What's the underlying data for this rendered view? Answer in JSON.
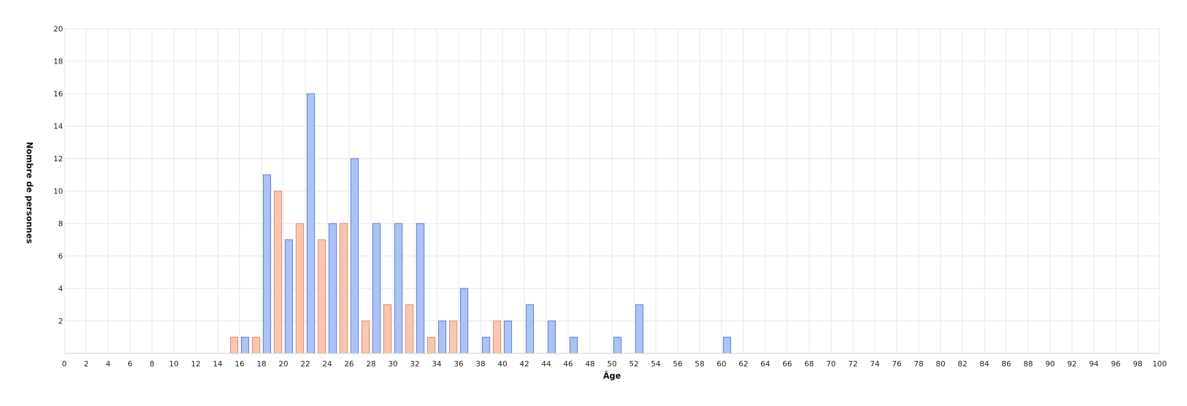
{
  "chart_data": {
    "type": "bar",
    "xlabel": "Âge",
    "ylabel": "Nombre de personnes",
    "xlim": [
      0,
      100
    ],
    "ylim": [
      0,
      20
    ],
    "x_ticks": [
      0,
      2,
      4,
      6,
      8,
      10,
      12,
      14,
      16,
      18,
      20,
      22,
      24,
      26,
      28,
      30,
      32,
      34,
      36,
      38,
      40,
      42,
      44,
      46,
      48,
      50,
      52,
      54,
      56,
      58,
      60,
      62,
      64,
      66,
      68,
      70,
      72,
      74,
      76,
      78,
      80,
      82,
      84,
      86,
      88,
      90,
      92,
      94,
      96,
      98,
      100
    ],
    "y_ticks": [
      2,
      4,
      6,
      8,
      10,
      12,
      14,
      16,
      18,
      20
    ],
    "grid": true,
    "colors": {
      "blue_fill": "#adc3f5",
      "blue_stroke": "#5b78d0",
      "orange_fill": "#fbc6ae",
      "orange_stroke": "#d98a6e",
      "grid": "#e6e6e6"
    },
    "series": [
      {
        "color": "blue",
        "points": [
          {
            "x": 16.5,
            "y": 1
          },
          {
            "x": 18.5,
            "y": 11
          },
          {
            "x": 20.5,
            "y": 7
          },
          {
            "x": 22.5,
            "y": 16
          },
          {
            "x": 24.5,
            "y": 8
          },
          {
            "x": 26.5,
            "y": 12
          },
          {
            "x": 28.5,
            "y": 8
          },
          {
            "x": 30.5,
            "y": 8
          },
          {
            "x": 32.5,
            "y": 8
          },
          {
            "x": 34.5,
            "y": 2
          },
          {
            "x": 36.5,
            "y": 4
          },
          {
            "x": 38.5,
            "y": 1
          },
          {
            "x": 40.5,
            "y": 2
          },
          {
            "x": 42.5,
            "y": 3
          },
          {
            "x": 44.5,
            "y": 2
          },
          {
            "x": 46.5,
            "y": 1
          },
          {
            "x": 50.5,
            "y": 1
          },
          {
            "x": 52.5,
            "y": 3
          },
          {
            "x": 60.5,
            "y": 1
          }
        ]
      },
      {
        "color": "orange",
        "points": [
          {
            "x": 15.5,
            "y": 1
          },
          {
            "x": 17.5,
            "y": 1
          },
          {
            "x": 19.5,
            "y": 10
          },
          {
            "x": 21.5,
            "y": 8
          },
          {
            "x": 23.5,
            "y": 7
          },
          {
            "x": 25.5,
            "y": 8
          },
          {
            "x": 27.5,
            "y": 2
          },
          {
            "x": 29.5,
            "y": 3
          },
          {
            "x": 31.5,
            "y": 3
          },
          {
            "x": 33.5,
            "y": 1
          },
          {
            "x": 35.5,
            "y": 2
          },
          {
            "x": 39.5,
            "y": 2
          }
        ]
      }
    ]
  }
}
